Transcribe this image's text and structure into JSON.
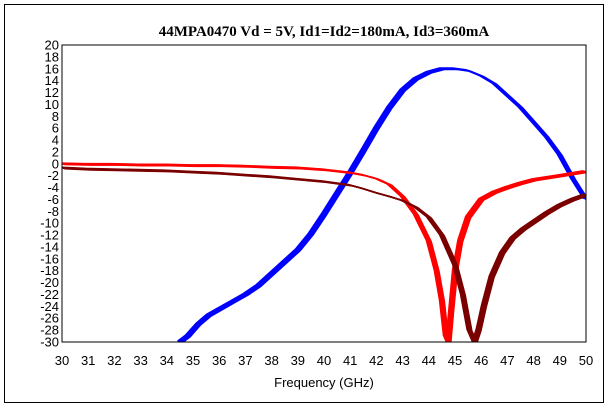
{
  "chart_data": {
    "type": "line",
    "title": "44MPA0470 Vd = 5V, Id1=Id2=180mA, Id3=360mA",
    "xlabel": "Frequency (GHz)",
    "ylabel": "",
    "xlim": [
      30,
      50
    ],
    "ylim": [
      -30,
      20
    ],
    "x_ticks": [
      "30",
      "31",
      "32",
      "33",
      "34",
      "35",
      "36",
      "37",
      "38",
      "39",
      "40",
      "41",
      "42",
      "43",
      "44",
      "45",
      "46",
      "47",
      "48",
      "49",
      "50"
    ],
    "y_ticks": [
      "20",
      "18",
      "16",
      "14",
      "12",
      "10",
      "8",
      "6",
      "4",
      "2",
      "0",
      "-2",
      "-4",
      "-6",
      "-8",
      "-10",
      "-12",
      "-14",
      "-16",
      "-18",
      "-20",
      "-22",
      "-24",
      "-26",
      "-28",
      "-30"
    ],
    "grid": false,
    "legend": "none",
    "colors": {
      "gain": "#0000ff",
      "input_return": "#ff0000",
      "output_return": "#7a0000"
    },
    "series": [
      {
        "color": "#0000ff",
        "x": [
          34.5,
          34.8,
          35.2,
          35.6,
          36.0,
          36.6,
          37.0,
          37.5,
          38.0,
          38.5,
          39.0,
          39.5,
          40.0,
          40.5,
          41.0,
          41.5,
          42.0,
          42.5,
          43.0,
          43.5,
          44.0,
          44.5,
          45.0,
          45.5,
          46.0,
          46.5,
          47.0,
          47.5,
          48.0,
          48.5,
          49.0,
          49.5,
          50.0
        ],
        "values": [
          -30,
          -29,
          -27,
          -25.5,
          -24.5,
          -23,
          -22,
          -20.5,
          -18.5,
          -16.5,
          -14.5,
          -11.8,
          -8.5,
          -5,
          -1.5,
          2.2,
          6,
          9.5,
          12.4,
          14.3,
          15.4,
          16,
          16,
          15.7,
          14.8,
          13.5,
          11.5,
          9.5,
          7,
          4.5,
          1.5,
          -2.5,
          -6
        ]
      },
      {
        "color": "#ff0000",
        "x": [
          30,
          31,
          32,
          33,
          34,
          35,
          36,
          37,
          38,
          39,
          40,
          41,
          41.5,
          42,
          42.5,
          43,
          43.5,
          44.0,
          44.3,
          44.5,
          44.65,
          44.75,
          44.85,
          45.0,
          45.2,
          45.5,
          46.0,
          46.5,
          47.0,
          47.5,
          48.0,
          49.0,
          50.0
        ],
        "values": [
          0,
          -0.1,
          -0.1,
          -0.2,
          -0.2,
          -0.3,
          -0.3,
          -0.4,
          -0.6,
          -0.7,
          -1.0,
          -1.5,
          -1.9,
          -2.5,
          -3.5,
          -5.5,
          -8.5,
          -13,
          -18,
          -23,
          -29,
          -30,
          -25,
          -18,
          -13,
          -9,
          -6,
          -4.8,
          -4,
          -3.3,
          -2.7,
          -2.0,
          -1.3
        ]
      },
      {
        "color": "#7a0000",
        "x": [
          30,
          31,
          32,
          33,
          34,
          35,
          36,
          37,
          38,
          39,
          40,
          41,
          41.5,
          42,
          42.5,
          43,
          43.5,
          44,
          44.5,
          45,
          45.3,
          45.55,
          45.75,
          45.9,
          46.1,
          46.4,
          46.8,
          47.2,
          47.6,
          48,
          48.5,
          49,
          49.5,
          50
        ],
        "values": [
          -0.7,
          -0.9,
          -1.0,
          -1.1,
          -1.2,
          -1.4,
          -1.6,
          -1.9,
          -2.2,
          -2.6,
          -3.0,
          -3.6,
          -4.2,
          -4.9,
          -5.5,
          -6.2,
          -7.3,
          -9,
          -12,
          -17,
          -22,
          -28,
          -30,
          -28,
          -24,
          -19,
          -15,
          -12.5,
          -11,
          -9.8,
          -8.3,
          -7,
          -6,
          -5.2
        ]
      }
    ]
  }
}
